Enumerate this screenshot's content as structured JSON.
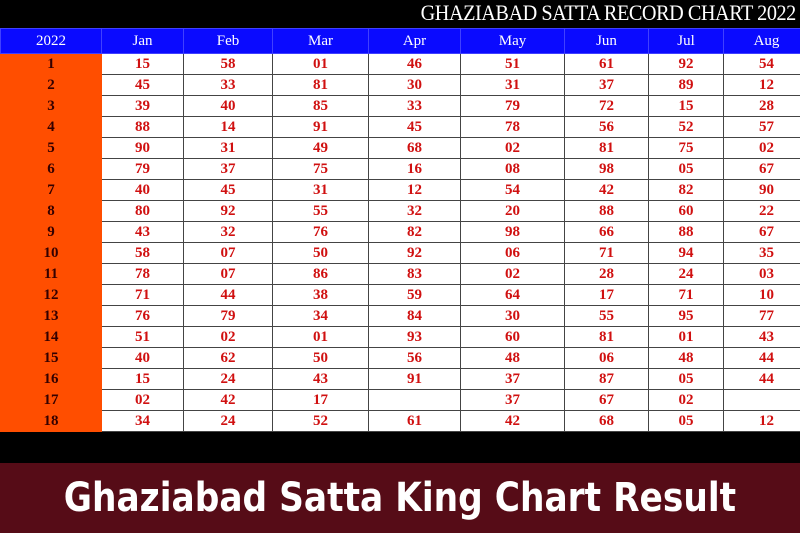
{
  "title": "GHAZIABAD SATTA RECORD CHART 2022",
  "header": [
    "2022",
    "Jan",
    "Feb",
    "Mar",
    "Apr",
    "May",
    "Jun",
    "Jul",
    "Aug"
  ],
  "rows": [
    [
      "1",
      "15",
      "58",
      "01",
      "46",
      "51",
      "61",
      "92",
      "54"
    ],
    [
      "2",
      "45",
      "33",
      "81",
      "30",
      "31",
      "37",
      "89",
      "12"
    ],
    [
      "3",
      "39",
      "40",
      "85",
      "33",
      "79",
      "72",
      "15",
      "28"
    ],
    [
      "4",
      "88",
      "14",
      "91",
      "45",
      "78",
      "56",
      "52",
      "57"
    ],
    [
      "5",
      "90",
      "31",
      "49",
      "68",
      "02",
      "81",
      "75",
      "02"
    ],
    [
      "6",
      "79",
      "37",
      "75",
      "16",
      "08",
      "98",
      "05",
      "67"
    ],
    [
      "7",
      "40",
      "45",
      "31",
      "12",
      "54",
      "42",
      "82",
      "90"
    ],
    [
      "8",
      "80",
      "92",
      "55",
      "32",
      "20",
      "88",
      "60",
      "22"
    ],
    [
      "9",
      "43",
      "32",
      "76",
      "82",
      "98",
      "66",
      "88",
      "67"
    ],
    [
      "10",
      "58",
      "07",
      "50",
      "92",
      "06",
      "71",
      "94",
      "35"
    ],
    [
      "11",
      "78",
      "07",
      "86",
      "83",
      "02",
      "28",
      "24",
      "03"
    ],
    [
      "12",
      "71",
      "44",
      "38",
      "59",
      "64",
      "17",
      "71",
      "10"
    ],
    [
      "13",
      "76",
      "79",
      "34",
      "84",
      "30",
      "55",
      "95",
      "77"
    ],
    [
      "14",
      "51",
      "02",
      "01",
      "93",
      "60",
      "81",
      "01",
      "43"
    ],
    [
      "15",
      "40",
      "62",
      "50",
      "56",
      "48",
      "06",
      "48",
      "44"
    ],
    [
      "16",
      "15",
      "24",
      "43",
      "91",
      "37",
      "87",
      "05",
      "44"
    ],
    [
      "17",
      "02",
      "42",
      "17",
      "",
      "37",
      "67",
      "02",
      ""
    ],
    [
      "18",
      "34",
      "24",
      "52",
      "61",
      "42",
      "68",
      "05",
      "12"
    ]
  ],
  "banner": "Ghaziabad Satta King Chart Result",
  "colors": {
    "header_bg": "#0a0aff",
    "day_bg": "#ff4e00",
    "value_text": "#d01010",
    "banner_bg": "#6e0f1e"
  }
}
